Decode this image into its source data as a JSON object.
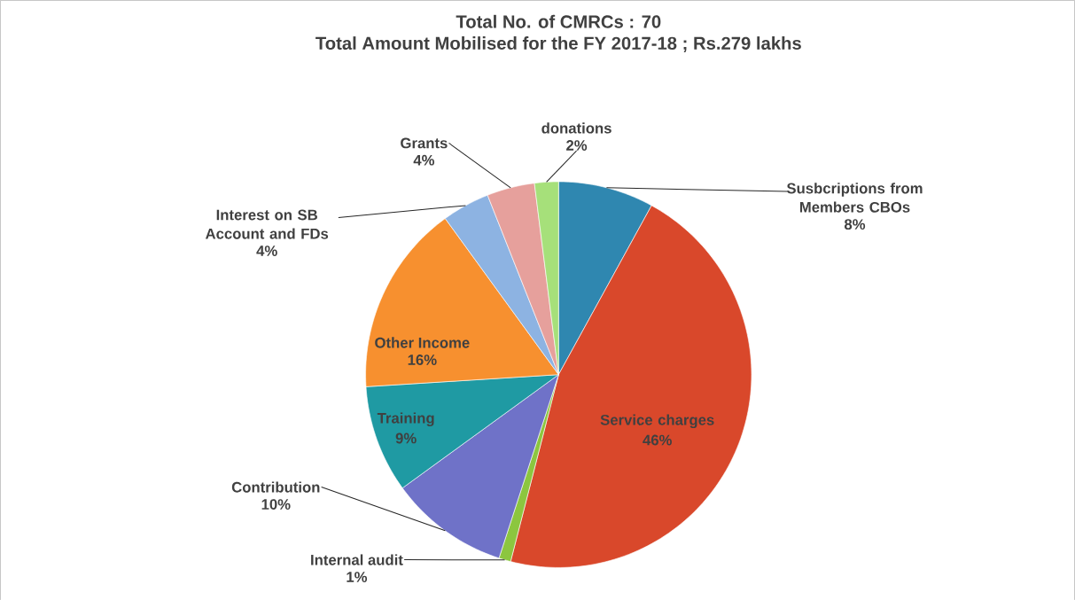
{
  "chart_data": {
    "type": "pie",
    "title": "Total No. of CMRCs : 70",
    "subtitle": "Total Amount Mobilised for the FY 2017-18 ; Rs.279 lakhs",
    "categories": [
      "Susbcriptions from Members CBOs",
      "Service charges",
      "Internal audit",
      "Contribution",
      "Training",
      "Other Income",
      "Interest on SB Account and FDs",
      "Grants",
      "donations"
    ],
    "values": [
      8,
      46,
      1,
      10,
      9,
      16,
      4,
      4,
      2
    ],
    "value_labels": [
      "8%",
      "46%",
      "1%",
      "10%",
      "9%",
      "16%",
      "4%",
      "4%",
      "2%"
    ],
    "colors": [
      "#2f87b0",
      "#d9482b",
      "#8cc63f",
      "#6f72c8",
      "#1f9aa3",
      "#f7902f",
      "#8db3e2",
      "#e6a09c",
      "#a6e07a"
    ]
  }
}
